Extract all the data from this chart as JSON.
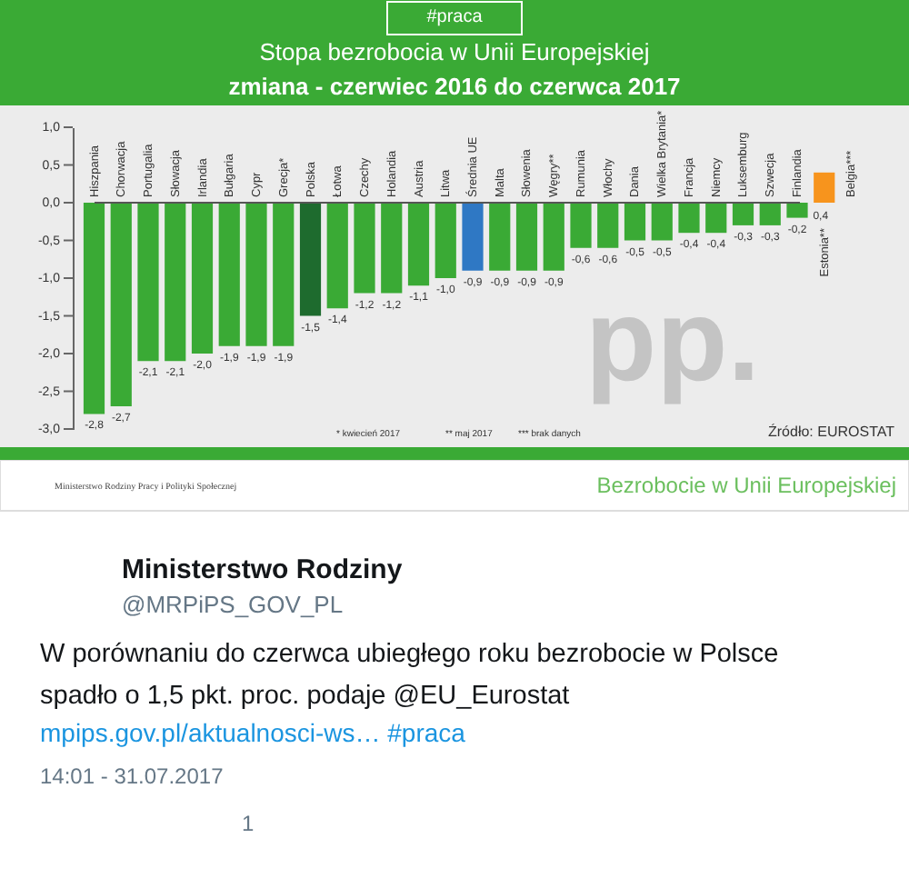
{
  "chart_data": {
    "type": "bar",
    "title": "Stopa bezrobocia w Unii Europejskiej",
    "subtitle": "zmiana - czerwiec 2016 do czerwca 2017",
    "categories": [
      "Hiszpania",
      "Chorwacja",
      "Portugalia",
      "Słowacja",
      "Irlandia",
      "Bułgaria",
      "Cypr",
      "Grecja*",
      "Polska",
      "Łotwa",
      "Czechy",
      "Holandia",
      "Austria",
      "Litwa",
      "Średnia UE",
      "Malta",
      "Słowenia",
      "Węgry**",
      "Rumunia",
      "Włochy",
      "Dania",
      "Wielka Brytania*",
      "Francja",
      "Niemcy",
      "Luksemburg",
      "Szwecja",
      "Finlandia",
      "Estonia**",
      "Belgia***"
    ],
    "values": [
      -2.8,
      -2.7,
      -2.1,
      -2.1,
      -2.0,
      -1.9,
      -1.9,
      -1.9,
      -1.5,
      -1.4,
      -1.2,
      -1.2,
      -1.1,
      -1.0,
      -0.9,
      -0.9,
      -0.9,
      -0.9,
      -0.6,
      -0.6,
      -0.5,
      -0.5,
      -0.4,
      -0.4,
      -0.3,
      -0.3,
      -0.2,
      0.4,
      null
    ],
    "value_labels": [
      "-2,8",
      "-2,7",
      "-2,1",
      "-2,1",
      "-2,0",
      "-1,9",
      "-1,9",
      "-1,9",
      "-1,5",
      "-1,4",
      "-1,2",
      "-1,2",
      "-1,1",
      "-1,0",
      "-0,9",
      "-0,9",
      "-0,9",
      "-0,9",
      "-0,6",
      "-0,6",
      "-0,5",
      "-0,5",
      "-0,4",
      "-0,4",
      "-0,3",
      "-0,3",
      "-0,2",
      "0,4",
      null
    ],
    "colors": [
      "#3aaa35",
      "#3aaa35",
      "#3aaa35",
      "#3aaa35",
      "#3aaa35",
      "#3aaa35",
      "#3aaa35",
      "#3aaa35",
      "#1e6b2e",
      "#3aaa35",
      "#3aaa35",
      "#3aaa35",
      "#3aaa35",
      "#3aaa35",
      "#2f78c4",
      "#3aaa35",
      "#3aaa35",
      "#3aaa35",
      "#3aaa35",
      "#3aaa35",
      "#3aaa35",
      "#3aaa35",
      "#3aaa35",
      "#3aaa35",
      "#3aaa35",
      "#3aaa35",
      "#3aaa35",
      "#f7941d",
      "#3aaa35"
    ],
    "ylim": [
      -3,
      1
    ],
    "yticks": [
      {
        "value": 1,
        "label": "1,0"
      },
      {
        "value": 0.5,
        "label": "0,5"
      },
      {
        "value": 0,
        "label": "0,0"
      },
      {
        "value": -0.5,
        "label": "-0,5"
      },
      {
        "value": -1,
        "label": "-1,0"
      },
      {
        "value": -1.5,
        "label": "-1,5"
      },
      {
        "value": -2,
        "label": "-2,0"
      },
      {
        "value": -2.5,
        "label": "-2,5"
      },
      {
        "value": -3,
        "label": "-3,0"
      }
    ],
    "grid": false,
    "tick_labels": "y",
    "annotations": [
      "#praca",
      "pp.",
      "* kwiecień 2017",
      "** maj 2017",
      "*** brak danych",
      "Źródło: EUROSTAT",
      "Ministerstwo Rodziny Pracy i Polityki Społecznej",
      "Bezrobocie w Unii Europejskiej",
      "Ministerstwo Rodziny",
      "@MRPiPS_GOV_PL",
      "W porównaniu do czerwca ubiegłego roku bezrobocie w Polsce",
      "spadło o 1,5 pkt. proc. podaje @EU_Eurostat",
      "mpips.gov.pl/aktualnosci-ws… #praca",
      "14:01 - 31.07.2017",
      "1"
    ]
  }
}
